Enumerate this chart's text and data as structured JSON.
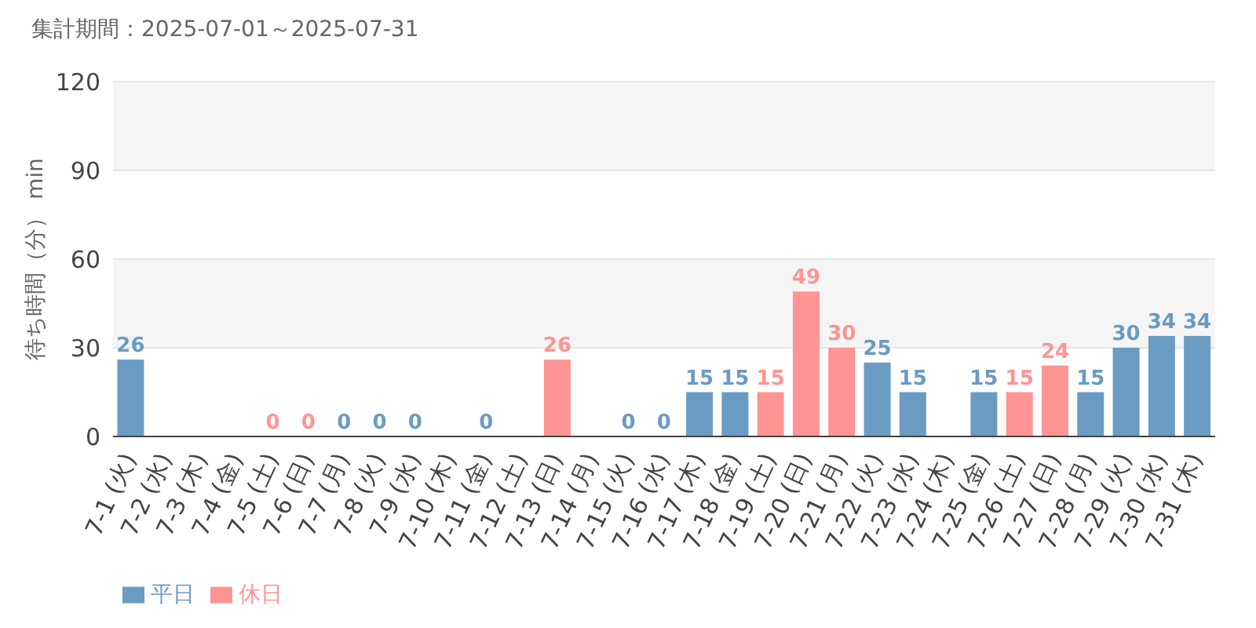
{
  "chart_data": {
    "type": "bar",
    "title": "集計期間：2025-07-01～2025-07-31",
    "ylabel": "待ち時間（分） min",
    "categories": [
      "7-1 (火)",
      "7-2 (水)",
      "7-3 (木)",
      "7-4 (金)",
      "7-5 (土)",
      "7-6 (日)",
      "7-7 (月)",
      "7-8 (火)",
      "7-9 (水)",
      "7-10 (木)",
      "7-11 (金)",
      "7-12 (土)",
      "7-13 (日)",
      "7-14 (月)",
      "7-15 (火)",
      "7-16 (水)",
      "7-17 (木)",
      "7-18 (金)",
      "7-19 (土)",
      "7-20 (日)",
      "7-21 (月)",
      "7-22 (火)",
      "7-23 (水)",
      "7-24 (木)",
      "7-25 (金)",
      "7-26 (土)",
      "7-27 (日)",
      "7-28 (月)",
      "7-29 (火)",
      "7-30 (水)",
      "7-31 (木)"
    ],
    "series": [
      {
        "name": "平日",
        "color": "#6a9bc3",
        "values": [
          26,
          null,
          null,
          null,
          null,
          null,
          0,
          0,
          0,
          null,
          0,
          null,
          null,
          null,
          0,
          0,
          15,
          15,
          null,
          null,
          null,
          25,
          15,
          null,
          15,
          null,
          null,
          15,
          30,
          34,
          34
        ]
      },
      {
        "name": "休日",
        "color": "#ff9494",
        "values": [
          null,
          null,
          null,
          null,
          0,
          0,
          null,
          null,
          null,
          null,
          null,
          null,
          26,
          null,
          null,
          null,
          null,
          null,
          15,
          49,
          30,
          null,
          null,
          null,
          null,
          15,
          24,
          null,
          null,
          null,
          null
        ]
      }
    ],
    "stacked": true,
    "ylim": [
      0,
      120
    ],
    "yticks": [
      0,
      30,
      60,
      90,
      120
    ],
    "grid": "y",
    "legend": "bottom left",
    "data_labels": true
  }
}
